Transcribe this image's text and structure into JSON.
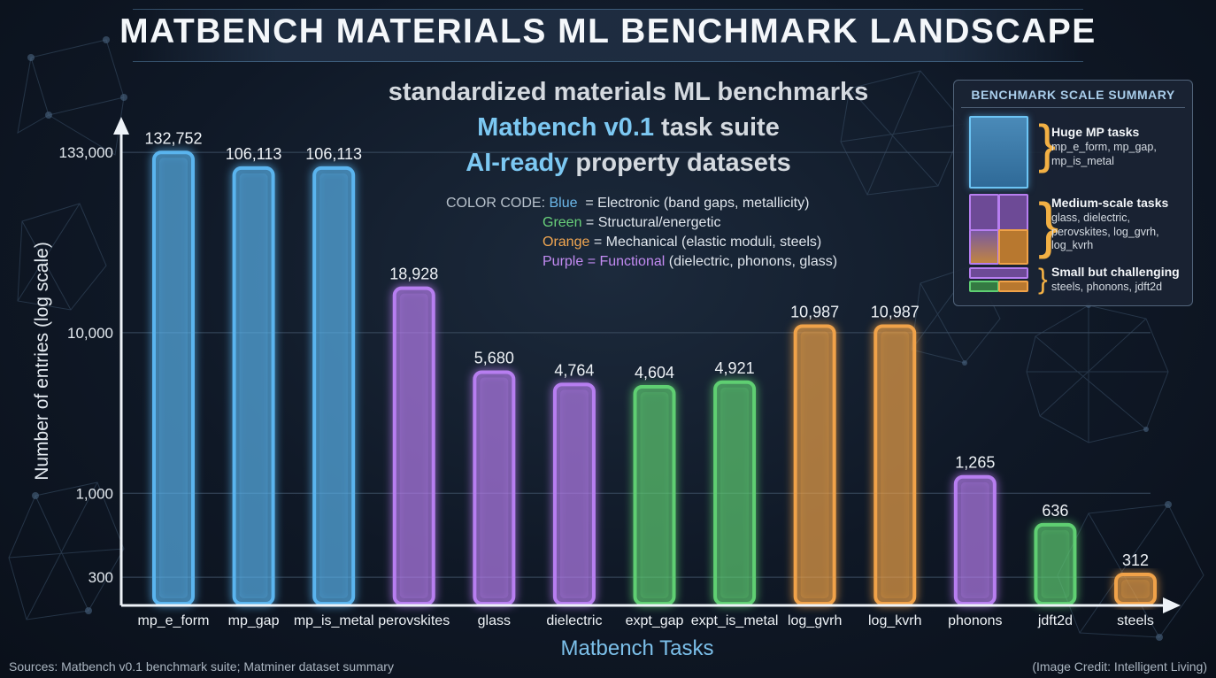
{
  "title": "MATBENCH MATERIALS ML BENCHMARK LANDSCAPE",
  "subtitle": {
    "line1": "standardized materials ML benchmarks",
    "line2_highlight": "Matbench v0.1",
    "line2_rest": " task suite",
    "line3_highlight": "AI-ready",
    "line3_rest": " property datasets"
  },
  "color_code": {
    "label": "COLOR CODE:",
    "blue_word": "Blue",
    "blue_desc": "  = Electronic (band gaps, metallicity)",
    "green_word": "Green",
    "green_desc": " = Structural/energetic",
    "orange_word": "Orange",
    "orange_desc": " = Mechanical (elastic moduli, steels)",
    "purple_word": "Purple = Functional",
    "purple_desc": " (dielectric, phonons, glass)"
  },
  "summary": {
    "title": "BENCHMARK SCALE SUMMARY",
    "groups": [
      {
        "heading": "Huge MP tasks",
        "text": "mp_e_form, mp_gap, mp_is_metal"
      },
      {
        "heading": "Medium-scale tasks",
        "text": "glass, dielectric, perovskites, log_gvrh, log_kvrh"
      },
      {
        "heading": "Small but challenging",
        "text": "steels, phonons, jdft2d"
      }
    ]
  },
  "colors": {
    "blue": "#5ab4ee",
    "purple": "#b77ef0",
    "green": "#5fcf72",
    "orange": "#f0a248"
  },
  "chart_data": {
    "type": "bar",
    "xlabel": "Matbench Tasks",
    "ylabel": "Number of entries (log scale)",
    "y_scale": "log",
    "ylim": [
      200,
      200000
    ],
    "y_ticks": [
      300,
      1000,
      10000,
      133000
    ],
    "y_tick_labels": [
      "300",
      "1,000",
      "10,000",
      "133,000"
    ],
    "grid": true,
    "categories": [
      "mp_e_form",
      "mp_gap",
      "mp_is_metal",
      "perovskites",
      "glass",
      "dielectric",
      "expt_gap",
      "expt_is_metal",
      "log_gvrh",
      "log_kvrh",
      "phonons",
      "jdft2d",
      "steels"
    ],
    "values": [
      132752,
      106113,
      106113,
      18928,
      5680,
      4764,
      4604,
      4921,
      10987,
      10987,
      1265,
      636,
      312
    ],
    "value_labels": [
      "132,752",
      "106,113",
      "106,113",
      "18,928",
      "5,680",
      "4,764",
      "4,604",
      "4,921",
      "10,987",
      "10,987",
      "1,265",
      "636",
      "312"
    ],
    "bar_colors": [
      "blue",
      "blue",
      "blue",
      "purple",
      "purple",
      "purple",
      "green",
      "green",
      "orange",
      "orange",
      "purple",
      "green",
      "orange"
    ]
  },
  "footer": {
    "source": "Sources: Matbench v0.1 benchmark suite; Matminer dataset summary",
    "credit": "(Image Credit: Intelligent Living)"
  }
}
